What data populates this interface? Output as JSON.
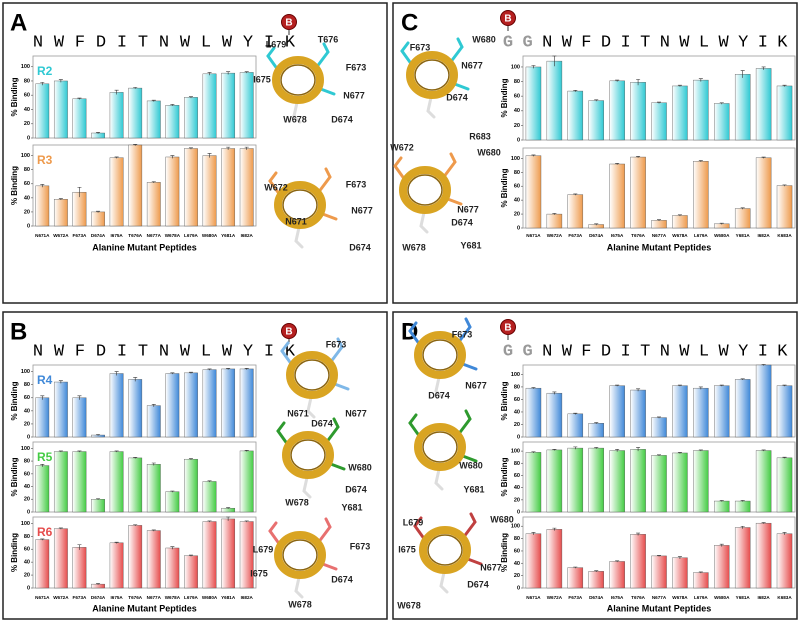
{
  "panels": [
    {
      "label": "A",
      "tag": "B",
      "sequence": [
        "N",
        "W",
        "F",
        "D",
        "I",
        "T",
        "N",
        "W",
        "L",
        "W",
        "Y",
        "I",
        "K"
      ],
      "x_label": "Alanine Mutant Peptides",
      "categories": [
        "N671A",
        "W672A",
        "F673A",
        "D674A",
        "I675A",
        "T676A",
        "N677A",
        "W678A",
        "L679A",
        "W680A",
        "Y681A",
        "I682A"
      ],
      "charts": [
        {
          "type": "bar",
          "name": "R2",
          "ylabel": "% Binding",
          "color": "#2fc9d3",
          "values": [
            76,
            80,
            55,
            7,
            64,
            70,
            52,
            46,
            57,
            90,
            91,
            92
          ],
          "errors": [
            2,
            2,
            1,
            1,
            3,
            1,
            1,
            1,
            1,
            2,
            2,
            1
          ],
          "ylim": [
            0,
            115
          ],
          "yticks": [
            0,
            20,
            40,
            60,
            80,
            100
          ]
        },
        {
          "type": "bar",
          "name": "R3",
          "ylabel": "% Binding",
          "color": "#ee9a4c",
          "values": [
            57,
            38,
            48,
            20,
            97,
            115,
            62,
            98,
            110,
            100,
            110,
            110
          ],
          "errors": [
            2,
            1,
            7,
            1,
            1,
            1,
            1,
            2,
            1,
            3,
            2,
            2
          ],
          "ylim": [
            0,
            115
          ],
          "yticks": [
            0,
            20,
            40,
            60,
            80,
            100
          ]
        }
      ],
      "residues": [
        "L679",
        "T676",
        "I675",
        "F673",
        "N677",
        "W678",
        "D674",
        "W672",
        "F673",
        "N677",
        "N671",
        "D674"
      ]
    },
    {
      "label": "B",
      "tag": "B",
      "sequence": [
        "N",
        "W",
        "F",
        "D",
        "I",
        "T",
        "N",
        "W",
        "L",
        "W",
        "Y",
        "I",
        "K"
      ],
      "x_label": "Alanine Mutant Peptides",
      "categories": [
        "N671A",
        "W672A",
        "F673A",
        "D674A",
        "I675A",
        "T676A",
        "N677A",
        "W678A",
        "L679A",
        "W680A",
        "Y681A",
        "I682A"
      ],
      "charts": [
        {
          "type": "bar",
          "name": "R4",
          "ylabel": "% Binding",
          "color": "#3f88d8",
          "values": [
            60,
            84,
            60,
            3,
            97,
            88,
            48,
            97,
            98,
            103,
            104,
            104
          ],
          "errors": [
            3,
            2,
            3,
            1,
            3,
            3,
            2,
            1,
            1,
            1,
            1,
            1
          ],
          "ylim": [
            0,
            110
          ],
          "yticks": [
            0,
            20,
            40,
            60,
            80,
            100
          ]
        },
        {
          "type": "bar",
          "name": "R5",
          "ylabel": "% Binding",
          "color": "#44cc44",
          "values": [
            73,
            95,
            95,
            20,
            95,
            85,
            75,
            32,
            83,
            48,
            6,
            96
          ],
          "errors": [
            2,
            1,
            1,
            1,
            1,
            1,
            2,
            1,
            1,
            1,
            1,
            1
          ],
          "ylim": [
            0,
            110
          ],
          "yticks": [
            0,
            20,
            40,
            60,
            80,
            100
          ]
        },
        {
          "type": "bar",
          "name": "R6",
          "ylabel": "% Binding",
          "color": "#e64c4c",
          "values": [
            75,
            92,
            63,
            6,
            70,
            97,
            89,
            62,
            50,
            103,
            107,
            103
          ],
          "errors": [
            1,
            1,
            4,
            1,
            1,
            1,
            1,
            2,
            1,
            1,
            3,
            1
          ],
          "ylim": [
            0,
            110
          ],
          "yticks": [
            0,
            20,
            40,
            60,
            80,
            100
          ]
        }
      ],
      "residues": [
        "F673",
        "N671",
        "N677",
        "D674",
        "W680",
        "W678",
        "D674",
        "Y681",
        "L679",
        "F673",
        "I675",
        "D674",
        "W678"
      ]
    },
    {
      "label": "C",
      "tag": "B",
      "linker": [
        "G",
        "G"
      ],
      "sequence": [
        "N",
        "W",
        "F",
        "D",
        "I",
        "T",
        "N",
        "W",
        "L",
        "W",
        "Y",
        "I",
        "K"
      ],
      "x_label": "Alanine Mutant Peptides",
      "categories": [
        "N671A",
        "W672A",
        "F673A",
        "D674A",
        "I675A",
        "T676A",
        "N677A",
        "W678A",
        "L679A",
        "W680A",
        "Y681A",
        "I682A",
        "K683A"
      ],
      "charts": [
        {
          "type": "bar",
          "ylabel": "% Binding",
          "color": "#2fc9d3",
          "values": [
            100,
            108,
            67,
            54,
            81,
            79,
            51,
            74,
            82,
            50,
            90,
            98,
            74
          ],
          "errors": [
            2,
            7,
            1,
            1,
            1,
            4,
            1,
            1,
            2,
            1,
            5,
            2,
            1
          ],
          "ylim": [
            0,
            115
          ],
          "yticks": [
            0,
            20,
            40,
            60,
            80,
            100
          ]
        },
        {
          "type": "bar",
          "ylabel": "% Binding",
          "color": "#ee9a4c",
          "values": [
            104,
            20,
            48,
            5,
            92,
            102,
            11,
            18,
            96,
            6,
            28,
            101,
            61
          ],
          "errors": [
            1,
            1,
            1,
            1,
            1,
            1,
            1,
            1,
            1,
            1,
            1,
            1,
            1
          ],
          "ylim": [
            0,
            115
          ],
          "yticks": [
            0,
            20,
            40,
            60,
            80,
            100
          ]
        }
      ],
      "residues": [
        "F673",
        "W680",
        "N677",
        "D674",
        "R683",
        "W672",
        "W680",
        "N677",
        "D674",
        "W678",
        "Y681"
      ]
    },
    {
      "label": "D",
      "tag": "B",
      "linker": [
        "G",
        "G"
      ],
      "sequence": [
        "N",
        "W",
        "F",
        "D",
        "I",
        "T",
        "N",
        "W",
        "L",
        "W",
        "Y",
        "I",
        "K"
      ],
      "x_label": "Alanine Mutant Peptides",
      "categories": [
        "N671A",
        "W672A",
        "F673A",
        "D674A",
        "I675A",
        "T676A",
        "N677A",
        "W678A",
        "L679A",
        "W680A",
        "Y681A",
        "I682A",
        "K683A"
      ],
      "charts": [
        {
          "type": "bar",
          "ylabel": "% Binding",
          "color": "#3f88d8",
          "values": [
            78,
            70,
            37,
            22,
            82,
            75,
            31,
            82,
            78,
            82,
            92,
            115,
            82
          ],
          "errors": [
            1,
            2,
            1,
            1,
            1,
            2,
            1,
            1,
            2,
            1,
            1,
            1,
            1
          ],
          "ylim": [
            0,
            115
          ],
          "yticks": [
            0,
            20,
            40,
            60,
            80,
            100
          ]
        },
        {
          "type": "bar",
          "ylabel": "% Binding",
          "color": "#44cc44",
          "values": [
            98,
            102,
            105,
            105,
            101,
            103,
            93,
            97,
            101,
            18,
            18,
            101,
            89
          ],
          "errors": [
            1,
            1,
            2,
            1,
            2,
            3,
            1,
            1,
            1,
            1,
            1,
            1,
            1
          ],
          "ylim": [
            0,
            115
          ],
          "yticks": [
            0,
            20,
            40,
            60,
            80,
            100
          ]
        },
        {
          "type": "bar",
          "ylabel": "% Binding",
          "color": "#e64c4c",
          "values": [
            88,
            95,
            33,
            27,
            43,
            87,
            52,
            49,
            25,
            69,
            98,
            105,
            88
          ],
          "errors": [
            2,
            2,
            1,
            1,
            1,
            2,
            1,
            2,
            1,
            2,
            2,
            1,
            2
          ],
          "ylim": [
            0,
            115
          ],
          "yticks": [
            0,
            20,
            40,
            60,
            80,
            100
          ]
        }
      ],
      "residues": [
        "F673",
        "N677",
        "D674",
        "W680",
        "Y681",
        "L679",
        "W680",
        "I675",
        "N677",
        "D674",
        "W678"
      ]
    }
  ]
}
